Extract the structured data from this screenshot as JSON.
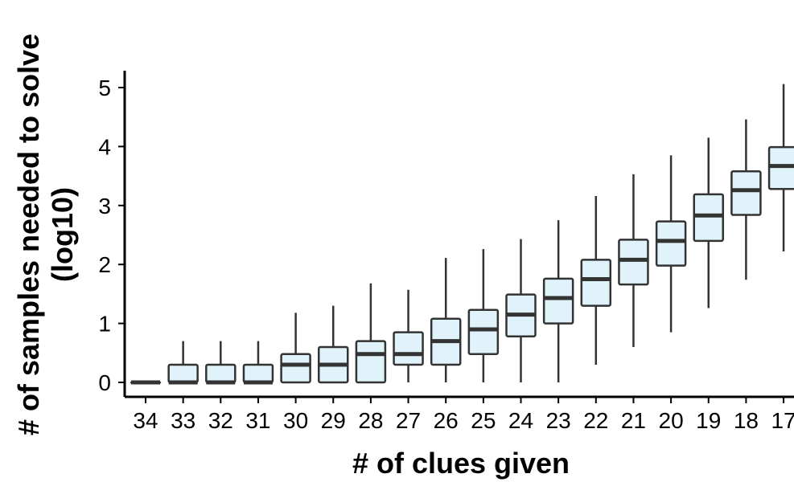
{
  "chart_data": {
    "type": "boxplot",
    "xlabel": "# of clues given",
    "ylabel_line1": "# of samples needed to solve",
    "ylabel_line2": "(log10)",
    "ylim": [
      0,
      5
    ],
    "yticks": [
      0,
      1,
      2,
      3,
      4,
      5
    ],
    "categories": [
      "34",
      "33",
      "32",
      "31",
      "30",
      "29",
      "28",
      "27",
      "26",
      "25",
      "24",
      "23",
      "22",
      "21",
      "20",
      "19",
      "18",
      "17"
    ],
    "boxes": [
      {
        "category": "34",
        "whisker_low": 0.0,
        "q1": 0.0,
        "median": 0.0,
        "q3": 0.0,
        "whisker_high": 0.0
      },
      {
        "category": "33",
        "whisker_low": 0.0,
        "q1": 0.0,
        "median": 0.0,
        "q3": 0.3,
        "whisker_high": 0.7
      },
      {
        "category": "32",
        "whisker_low": 0.0,
        "q1": 0.0,
        "median": 0.0,
        "q3": 0.3,
        "whisker_high": 0.7
      },
      {
        "category": "31",
        "whisker_low": 0.0,
        "q1": 0.0,
        "median": 0.0,
        "q3": 0.3,
        "whisker_high": 0.7
      },
      {
        "category": "30",
        "whisker_low": 0.0,
        "q1": 0.0,
        "median": 0.3,
        "q3": 0.48,
        "whisker_high": 1.18
      },
      {
        "category": "29",
        "whisker_low": 0.0,
        "q1": 0.0,
        "median": 0.3,
        "q3": 0.6,
        "whisker_high": 1.3
      },
      {
        "category": "28",
        "whisker_low": 0.0,
        "q1": 0.0,
        "median": 0.48,
        "q3": 0.7,
        "whisker_high": 1.68
      },
      {
        "category": "27",
        "whisker_low": 0.0,
        "q1": 0.3,
        "median": 0.48,
        "q3": 0.85,
        "whisker_high": 1.57
      },
      {
        "category": "26",
        "whisker_low": 0.0,
        "q1": 0.3,
        "median": 0.7,
        "q3": 1.08,
        "whisker_high": 2.11
      },
      {
        "category": "25",
        "whisker_low": 0.0,
        "q1": 0.48,
        "median": 0.9,
        "q3": 1.23,
        "whisker_high": 2.26
      },
      {
        "category": "24",
        "whisker_low": 0.0,
        "q1": 0.78,
        "median": 1.15,
        "q3": 1.49,
        "whisker_high": 2.43
      },
      {
        "category": "23",
        "whisker_low": 0.0,
        "q1": 1.0,
        "median": 1.43,
        "q3": 1.76,
        "whisker_high": 2.75
      },
      {
        "category": "22",
        "whisker_low": 0.3,
        "q1": 1.3,
        "median": 1.75,
        "q3": 2.08,
        "whisker_high": 3.16
      },
      {
        "category": "21",
        "whisker_low": 0.6,
        "q1": 1.66,
        "median": 2.08,
        "q3": 2.42,
        "whisker_high": 3.53
      },
      {
        "category": "20",
        "whisker_low": 0.85,
        "q1": 1.98,
        "median": 2.4,
        "q3": 2.73,
        "whisker_high": 3.85
      },
      {
        "category": "19",
        "whisker_low": 1.26,
        "q1": 2.4,
        "median": 2.83,
        "q3": 3.19,
        "whisker_high": 4.15
      },
      {
        "category": "18",
        "whisker_low": 1.74,
        "q1": 2.84,
        "median": 3.26,
        "q3": 3.58,
        "whisker_high": 4.46
      },
      {
        "category": "17",
        "whisker_low": 2.22,
        "q1": 3.28,
        "median": 3.67,
        "q3": 3.99,
        "whisker_high": 5.06
      }
    ],
    "colors": {
      "box_fill": "#e0f3fa",
      "box_stroke": "#333333",
      "median": "#333333",
      "axis": "#000000"
    },
    "grid": false,
    "legend": "none"
  }
}
